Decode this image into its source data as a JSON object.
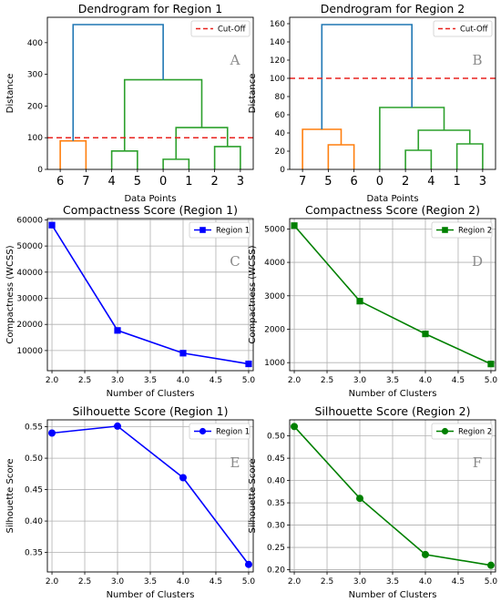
{
  "chart_data": [
    {
      "id": "A",
      "type": "dendrogram",
      "title": "Dendrogram for Region 1",
      "xlabel": "Data Points",
      "ylabel": "Distance",
      "panel_letter": "A",
      "leaves": [
        "6",
        "7",
        "4",
        "5",
        "0",
        "1",
        "2",
        "3"
      ],
      "ylim": [
        0,
        480
      ],
      "yticks": [
        0,
        100,
        200,
        300,
        400
      ],
      "cutoff": 100,
      "legend": "Cut-Off",
      "legend_position": "top-right",
      "cutoff_color": "#e8221e",
      "links": [
        {
          "left": "6",
          "right": "7",
          "height": 90,
          "color": "#ff7f0e"
        },
        {
          "left": "4",
          "right": "5",
          "height": 58,
          "color": "#2ca02c"
        },
        {
          "left": "0",
          "right": "1",
          "height": 32,
          "color": "#2ca02c"
        },
        {
          "left": "2",
          "right": "3",
          "height": 72,
          "color": "#2ca02c"
        },
        {
          "left": "(0,1)",
          "right": "(2,3)",
          "height": 132,
          "color": "#2ca02c"
        },
        {
          "left": "(4,5)",
          "right": "(0,1,2,3)",
          "height": 283,
          "color": "#2ca02c"
        },
        {
          "left": "(6,7)",
          "right": "(4,5,0,1,2,3)",
          "height": 457,
          "color": "#1f77b4"
        }
      ]
    },
    {
      "id": "B",
      "type": "dendrogram",
      "title": "Dendrogram for Region 2",
      "xlabel": "Data Points",
      "ylabel": "Distance",
      "panel_letter": "B",
      "leaves": [
        "7",
        "5",
        "6",
        "0",
        "2",
        "4",
        "1",
        "3"
      ],
      "ylim": [
        0,
        167
      ],
      "yticks": [
        0,
        20,
        40,
        60,
        80,
        100,
        120,
        140,
        160
      ],
      "cutoff": 100,
      "legend": "Cut-Off",
      "legend_position": "top-right",
      "cutoff_color": "#e8221e",
      "links": [
        {
          "left": "5",
          "right": "6",
          "height": 27,
          "color": "#ff7f0e"
        },
        {
          "left": "7",
          "right": "(5,6)",
          "height": 44,
          "color": "#ff7f0e"
        },
        {
          "left": "2",
          "right": "4",
          "height": 21,
          "color": "#2ca02c"
        },
        {
          "left": "1",
          "right": "3",
          "height": 28,
          "color": "#2ca02c"
        },
        {
          "left": "(2,4)",
          "right": "(1,3)",
          "height": 43,
          "color": "#2ca02c"
        },
        {
          "left": "0",
          "right": "(2,4,1,3)",
          "height": 68,
          "color": "#2ca02c"
        },
        {
          "left": "(7,5,6)",
          "right": "(0,2,4,1,3)",
          "height": 159,
          "color": "#1f77b4"
        }
      ]
    },
    {
      "id": "C",
      "type": "line",
      "title": "Compactness Score (Region 1)",
      "xlabel": "Number of Clusters",
      "ylabel": "Compactness (WCSS)",
      "panel_letter": "C",
      "x": [
        2,
        3,
        4,
        5
      ],
      "xlim": [
        1.93,
        5.07
      ],
      "xticks": [
        2.0,
        2.5,
        3.0,
        3.5,
        4.0,
        4.5,
        5.0
      ],
      "ylim": [
        2300,
        60500
      ],
      "yticks": [
        10000,
        20000,
        30000,
        40000,
        50000,
        60000
      ],
      "grid": true,
      "legend_position": "top-right",
      "series": [
        {
          "name": "Region 1",
          "values": [
            58000,
            17700,
            9000,
            4900
          ],
          "color": "#0000ff",
          "marker": "square"
        }
      ]
    },
    {
      "id": "D",
      "type": "line",
      "title": "Compactness Score (Region 2)",
      "xlabel": "Number of Clusters",
      "ylabel": "Compactness (WCSS)",
      "panel_letter": "D",
      "x": [
        2,
        3,
        4,
        5
      ],
      "xlim": [
        1.93,
        5.07
      ],
      "xticks": [
        2.0,
        2.5,
        3.0,
        3.5,
        4.0,
        4.5,
        5.0
      ],
      "ylim": [
        760,
        5310
      ],
      "yticks": [
        1000,
        2000,
        3000,
        4000,
        5000
      ],
      "grid": true,
      "legend_position": "top-right",
      "series": [
        {
          "name": "Region 2",
          "values": [
            5100,
            2840,
            1860,
            960
          ],
          "color": "#008000",
          "marker": "square"
        }
      ]
    },
    {
      "id": "E",
      "type": "line",
      "title": "Silhouette Score (Region 1)",
      "xlabel": "Number of Clusters",
      "ylabel": "Silhouette Score",
      "panel_letter": "E",
      "x": [
        2,
        3,
        4,
        5
      ],
      "xlim": [
        1.93,
        5.07
      ],
      "xticks": [
        2.0,
        2.5,
        3.0,
        3.5,
        4.0,
        4.5,
        5.0
      ],
      "ylim": [
        0.319,
        0.561
      ],
      "yticks": [
        0.35,
        0.4,
        0.45,
        0.5,
        0.55
      ],
      "grid": true,
      "legend_position": "top-right",
      "series": [
        {
          "name": "Region 1",
          "values": [
            0.54,
            0.551,
            0.469,
            0.331
          ],
          "color": "#0000ff",
          "marker": "circle"
        }
      ]
    },
    {
      "id": "F",
      "type": "line",
      "title": "Silhouette Score (Region 2)",
      "xlabel": "Number of Clusters",
      "ylabel": "Silhouette Score",
      "panel_letter": "F",
      "x": [
        2,
        3,
        4,
        5
      ],
      "xlim": [
        1.93,
        5.07
      ],
      "xticks": [
        2.0,
        2.5,
        3.0,
        3.5,
        4.0,
        4.5,
        5.0
      ],
      "ylim": [
        0.195,
        0.536
      ],
      "yticks": [
        0.2,
        0.25,
        0.3,
        0.35,
        0.4,
        0.45,
        0.5
      ],
      "grid": true,
      "legend_position": "top-right",
      "series": [
        {
          "name": "Region 2",
          "values": [
            0.521,
            0.36,
            0.234,
            0.21
          ],
          "color": "#008000",
          "marker": "circle"
        }
      ]
    }
  ]
}
